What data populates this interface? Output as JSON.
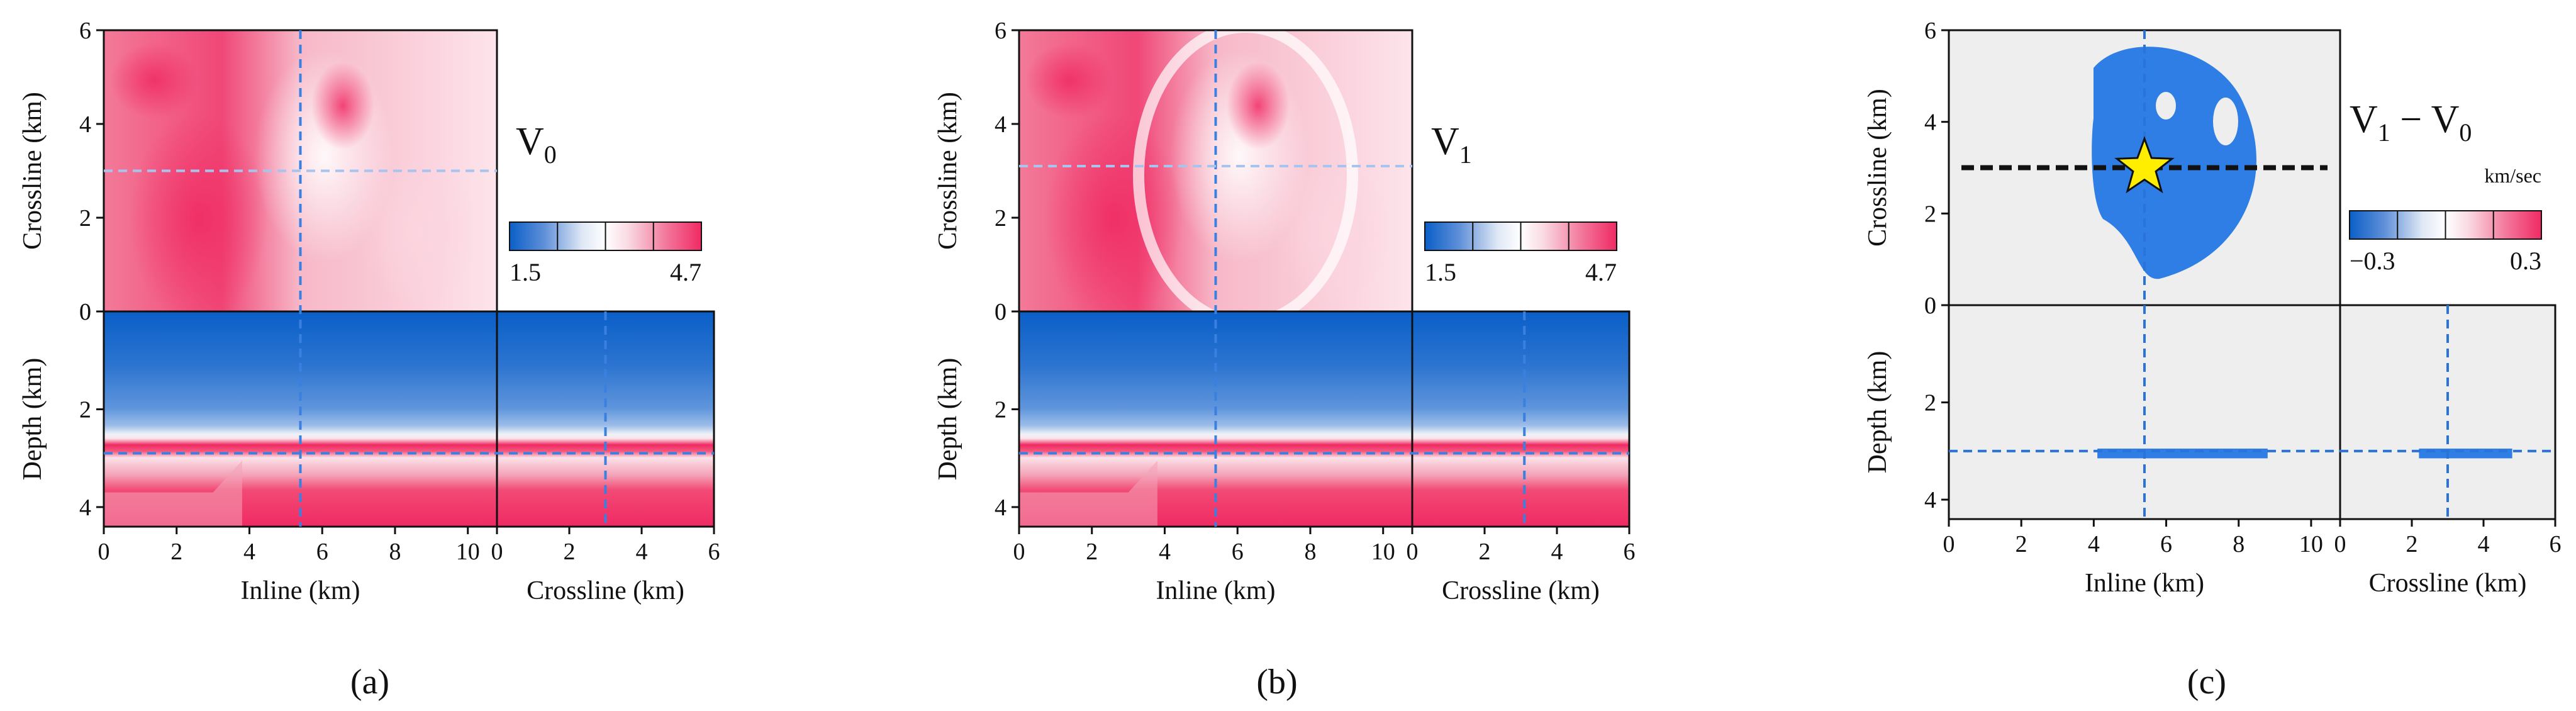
{
  "figure": {
    "panel_labels": [
      "(a)",
      "(b)",
      "(c)"
    ],
    "colors": {
      "blue": "#0a5fc8",
      "pink": "#f02a63",
      "white": "#ffffff",
      "diff_background": "#eeeeee",
      "diff_anomaly": "#2f7ee6",
      "guide_line": "#2a74d9",
      "star": "#ffee00"
    }
  },
  "chart_data": [
    {
      "type": "heatmap",
      "panel": "(a)",
      "title": "V_0",
      "title_main": "V",
      "title_sub": "0",
      "colorbar": {
        "min": 1.5,
        "max": 4.7,
        "tick_labels": [
          "1.5",
          "4.7"
        ],
        "colors": [
          "#0a5fc8",
          "#ffffff",
          "#f02a63"
        ]
      },
      "views": {
        "map": {
          "xlabel": "Inline (km)",
          "ylabel": "Crossline (km)",
          "xlim": [
            0,
            10.8
          ],
          "ylim": [
            0,
            6
          ],
          "yticks": [
            0,
            2,
            4,
            6
          ]
        },
        "inline_section": {
          "xlabel": "Inline (km)",
          "ylabel": "Depth (km)",
          "xlim": [
            0,
            10.8
          ],
          "ylim": [
            4.4,
            0
          ],
          "xticks": [
            0,
            2,
            4,
            6,
            8,
            10
          ],
          "yticks": [
            0,
            2,
            4
          ]
        },
        "crossline_section": {
          "xlabel": "Crossline (km)",
          "xlim": [
            0,
            6
          ],
          "xticks": [
            0,
            2,
            4,
            6
          ]
        }
      },
      "guide_lines": {
        "inline_km": 5.4,
        "crossline_km": 3.0,
        "depth_km": 2.9
      }
    },
    {
      "type": "heatmap",
      "panel": "(b)",
      "title": "V_1",
      "title_main": "V",
      "title_sub": "1",
      "colorbar": {
        "min": 1.5,
        "max": 4.7,
        "tick_labels": [
          "1.5",
          "4.7"
        ],
        "colors": [
          "#0a5fc8",
          "#ffffff",
          "#f02a63"
        ]
      },
      "views": {
        "map": {
          "xlabel": "Inline (km)",
          "ylabel": "Crossline (km)",
          "xlim": [
            0,
            10.8
          ],
          "ylim": [
            0,
            6
          ],
          "yticks": [
            0,
            2,
            4,
            6
          ]
        },
        "inline_section": {
          "xlabel": "Inline (km)",
          "ylabel": "Depth (km)",
          "xlim": [
            0,
            10.8
          ],
          "ylim": [
            4.4,
            0
          ],
          "xticks": [
            0,
            2,
            4,
            6,
            8,
            10
          ],
          "yticks": [
            0,
            2,
            4
          ]
        },
        "crossline_section": {
          "xlabel": "Crossline (km)",
          "xlim": [
            0,
            6
          ],
          "xticks": [
            0,
            2,
            4,
            6
          ]
        }
      },
      "guide_lines": {
        "inline_km": 5.4,
        "crossline_km": 3.1,
        "depth_km": 2.9
      }
    },
    {
      "type": "heatmap",
      "panel": "(c)",
      "title": "V_1 − V_0",
      "title_main_1": "V",
      "title_sub_1": "1",
      "title_mid": " − V",
      "title_sub_2": "0",
      "units": "km/sec",
      "colorbar": {
        "min": -0.3,
        "max": 0.3,
        "tick_labels": [
          "−0.3",
          "0.3"
        ],
        "colors": [
          "#0a5fc8",
          "#ffffff",
          "#f02a63"
        ]
      },
      "views": {
        "map": {
          "xlabel": "Inline (km)",
          "ylabel": "Crossline (km)",
          "xlim": [
            0,
            10.8
          ],
          "ylim": [
            0,
            6
          ],
          "yticks": [
            0,
            2,
            4,
            6
          ]
        },
        "inline_section": {
          "xlabel": "Inline (km)",
          "ylabel": "Depth (km)",
          "xlim": [
            0,
            10.8
          ],
          "ylim": [
            4.4,
            0
          ],
          "xticks": [
            0,
            2,
            4,
            6,
            8,
            10
          ],
          "yticks": [
            0,
            2,
            4
          ]
        },
        "crossline_section": {
          "xlabel": "Crossline (km)",
          "xlim": [
            0,
            6
          ],
          "xticks": [
            0,
            2,
            4,
            6
          ]
        }
      },
      "guide_lines": {
        "inline_km": 5.4,
        "crossline_km": 3.0,
        "depth_km": 3.0
      },
      "marker": {
        "shape": "star",
        "inline_km": 5.4,
        "crossline_km": 3.0
      },
      "anomaly_value": -0.3
    }
  ]
}
